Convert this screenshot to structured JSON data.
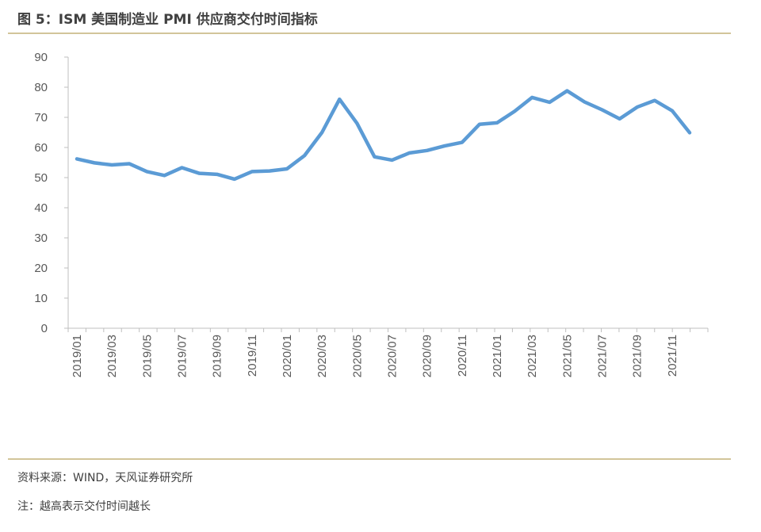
{
  "header": {
    "title": "图 5：ISM 美国制造业 PMI 供应商交付时间指标"
  },
  "footer": {
    "source": "资料来源：WIND，天风证券研究所",
    "note": "注：越高表示交付时间越长"
  },
  "colors": {
    "line": "#5b9bd5",
    "rule": "#d2c59a",
    "axis": "#bfbfbf"
  },
  "chart_data": {
    "type": "line",
    "title": "ISM 美国制造业 PMI 供应商交付时间指标",
    "xlabel": "",
    "ylabel": "",
    "ylim": [
      0,
      90
    ],
    "yticks": [
      0,
      10,
      20,
      30,
      40,
      50,
      60,
      70,
      80,
      90
    ],
    "grid": false,
    "legend": "none",
    "x": [
      "2019/01",
      "2019/02",
      "2019/03",
      "2019/04",
      "2019/05",
      "2019/06",
      "2019/07",
      "2019/08",
      "2019/09",
      "2019/10",
      "2019/11",
      "2019/12",
      "2020/01",
      "2020/02",
      "2020/03",
      "2020/04",
      "2020/05",
      "2020/06",
      "2020/07",
      "2020/08",
      "2020/09",
      "2020/10",
      "2020/11",
      "2020/12",
      "2021/01",
      "2021/02",
      "2021/03",
      "2021/04",
      "2021/05",
      "2021/06",
      "2021/07",
      "2021/08",
      "2021/09",
      "2021/10",
      "2021/11",
      "2021/12"
    ],
    "xtick_labels": [
      "2019/01",
      "2019/03",
      "2019/05",
      "2019/07",
      "2019/09",
      "2019/11",
      "2020/01",
      "2020/03",
      "2020/05",
      "2020/07",
      "2020/09",
      "2020/11",
      "2021/01",
      "2021/03",
      "2021/05",
      "2021/07",
      "2021/09",
      "2021/11"
    ],
    "series": [
      {
        "name": "供应商交付时间",
        "values": [
          56.2,
          54.9,
          54.2,
          54.6,
          52.0,
          50.7,
          53.3,
          51.4,
          51.1,
          49.5,
          52.0,
          52.2,
          52.9,
          57.3,
          65.0,
          76.0,
          68.0,
          56.9,
          55.8,
          58.2,
          59.0,
          60.5,
          61.7,
          67.7,
          68.2,
          72.0,
          76.6,
          75.0,
          78.8,
          75.1,
          72.5,
          69.5,
          73.4,
          75.6,
          72.2,
          64.9
        ]
      }
    ]
  }
}
